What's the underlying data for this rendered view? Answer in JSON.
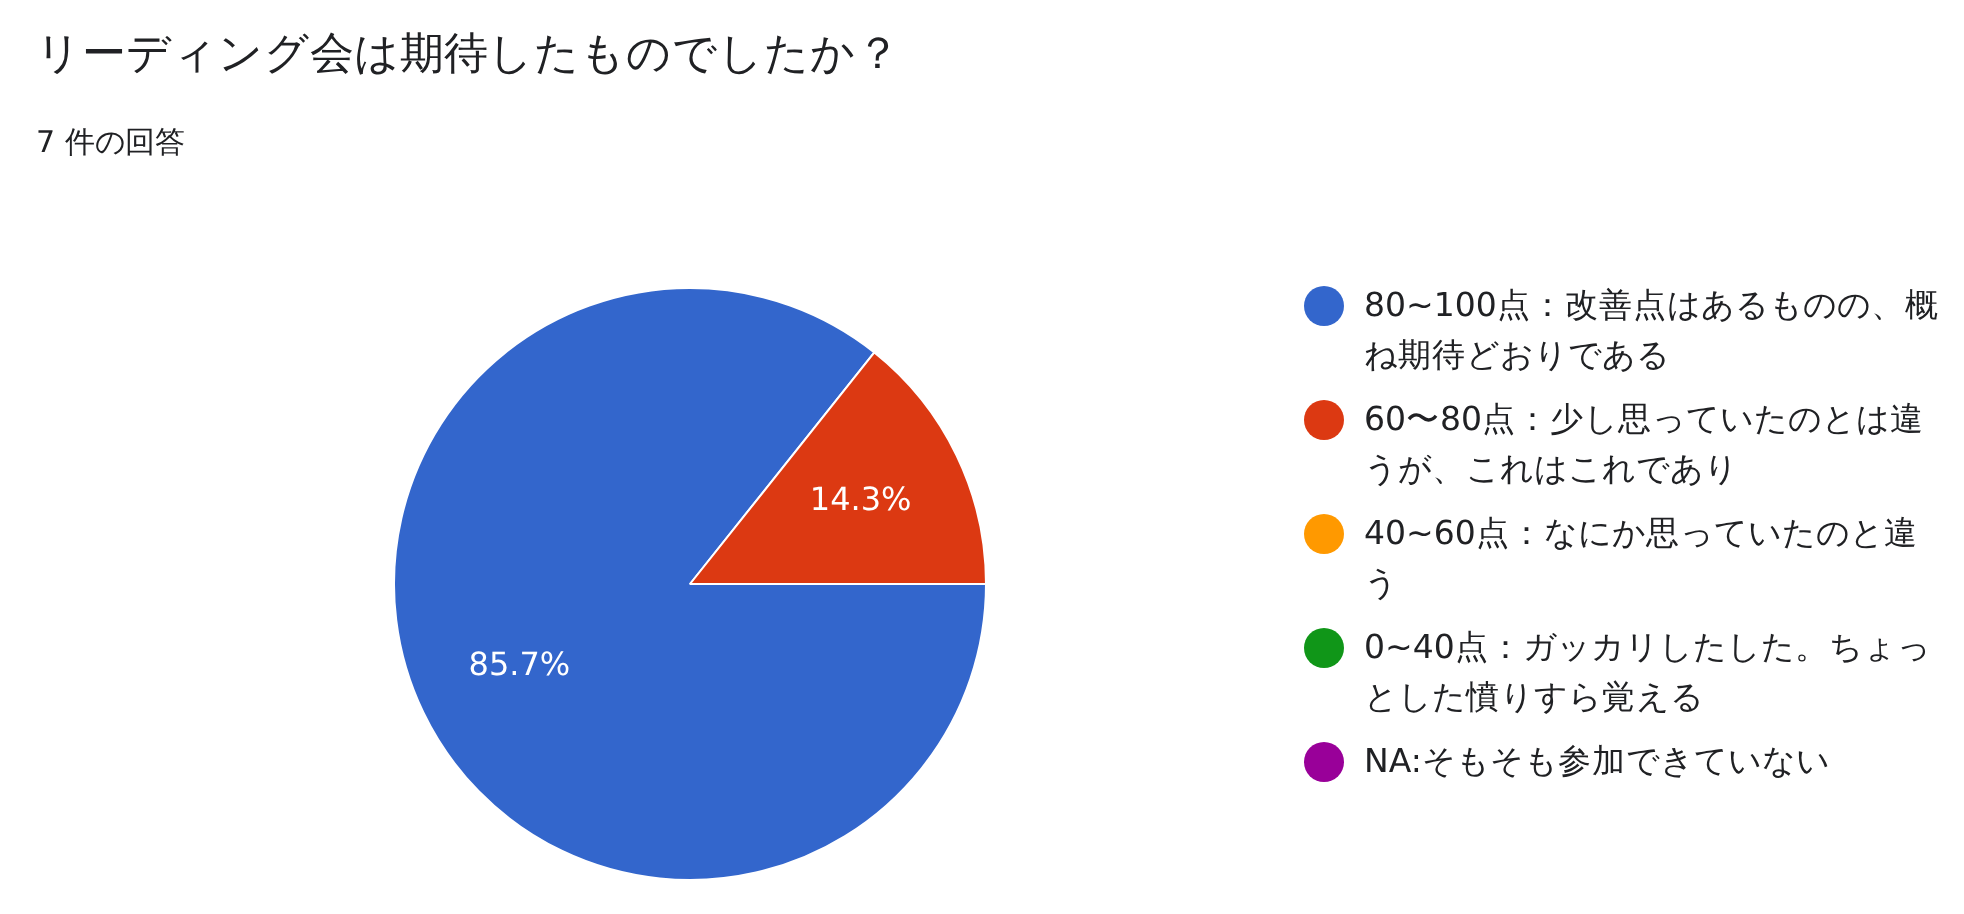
{
  "chart_data": {
    "type": "pie",
    "title": "リーディング会は期待したものでしたか？",
    "subtitle": "7 件の回答",
    "categories": [
      "80~100点：改善点はあるものの、概ね期待どおりである",
      "60〜80点：少し思っていたのとは違うが、これはこれであり",
      "40~60点：なにか思っていたのと違う",
      "0~40点：ガッカリしたした。ちょっとした憤りすら覚える",
      "NA:そもそも参加できていない"
    ],
    "values": [
      85.7,
      14.3,
      0,
      0,
      0
    ],
    "value_labels": [
      "85.7%",
      "14.3%",
      null,
      null,
      null
    ],
    "colors": [
      "#3366cc",
      "#dc3912",
      "#ff9900",
      "#109618",
      "#990099"
    ],
    "legend": "right"
  }
}
